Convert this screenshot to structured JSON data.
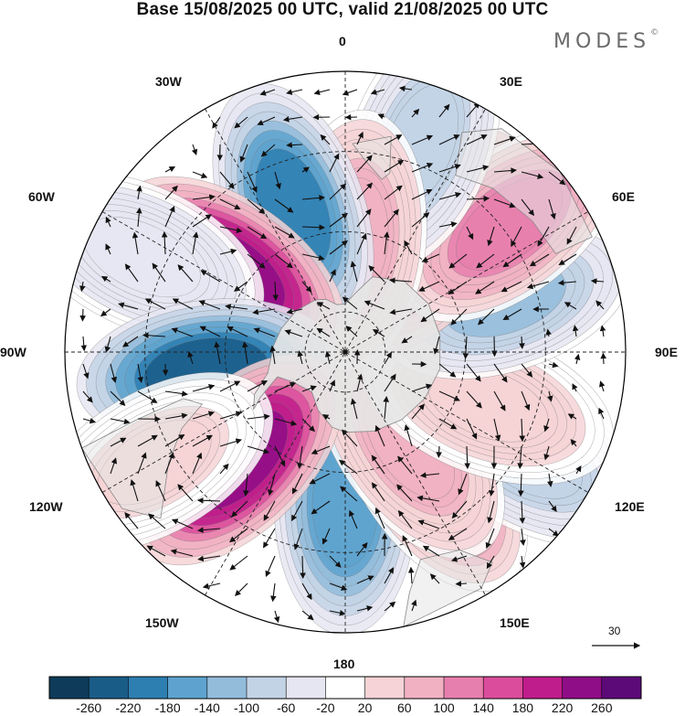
{
  "title": "Base 15/08/2025 00 UTC, valid 21/08/2025 00 UTC",
  "brand": "MODES",
  "brand_mark": "©",
  "longitude_labels": {
    "lon_0": "0",
    "lon_30e": "30E",
    "lon_60e": "60E",
    "lon_90e": "90E",
    "lon_120e": "120E",
    "lon_150e": "150E",
    "lon_180": "180",
    "lon_150w": "150W",
    "lon_120w": "120W",
    "lon_90w": "90W",
    "lon_60w": "60W",
    "lon_30w": "30W"
  },
  "reference_vector": {
    "value": "30"
  },
  "colorbar": {
    "colors": [
      "#0f3b5a",
      "#1a5c88",
      "#2d7fb1",
      "#5ea3cf",
      "#93bcdb",
      "#c3d3e6",
      "#e6e6f2",
      "#ffffff",
      "#f6d3d6",
      "#f1b1c3",
      "#e77fae",
      "#db4d9c",
      "#bf1d8b",
      "#8f0d86",
      "#5c0a78"
    ],
    "ticks": [
      "-260",
      "-220",
      "-180",
      "-140",
      "-100",
      "-60",
      "-20",
      "20",
      "60",
      "100",
      "140",
      "180",
      "220",
      "260"
    ]
  },
  "anomalies": [
    {
      "lon": 0,
      "lat": -52,
      "value": -175,
      "name": "low-0"
    },
    {
      "lon": 35,
      "lat": -52,
      "value": 120,
      "name": "high-30e"
    },
    {
      "lon": 60,
      "lat": -38,
      "value": -85,
      "name": "low-60e"
    },
    {
      "lon": 35,
      "lat": -62,
      "value": 90,
      "name": "high-35e-inner"
    },
    {
      "lon": 70,
      "lat": -52,
      "value": 50,
      "name": "high-70e"
    },
    {
      "lon": 108,
      "lat": -48,
      "value": -110,
      "name": "low-108e"
    },
    {
      "lon": 142,
      "lat": -55,
      "value": 160,
      "name": "high-142e"
    },
    {
      "lon": 128,
      "lat": -38,
      "value": 120,
      "name": "high-128e"
    },
    {
      "lon": 160,
      "lat": -35,
      "value": -90,
      "name": "low-160e"
    },
    {
      "lon": 175,
      "lat": -62,
      "value": 80,
      "name": "high-175e"
    },
    {
      "lon": -160,
      "lat": -52,
      "value": -185,
      "name": "low-160w"
    },
    {
      "lon": -125,
      "lat": -55,
      "value": 250,
      "name": "high-125w"
    },
    {
      "lon": -115,
      "lat": -34,
      "value": -55,
      "name": "low-115w"
    },
    {
      "lon": -82,
      "lat": -55,
      "value": -225,
      "name": "low-82w"
    },
    {
      "lon": -45,
      "lat": -52,
      "value": 250,
      "name": "high-45w"
    },
    {
      "lon": -60,
      "lat": -35,
      "value": 30,
      "name": "high-60w"
    }
  ]
}
